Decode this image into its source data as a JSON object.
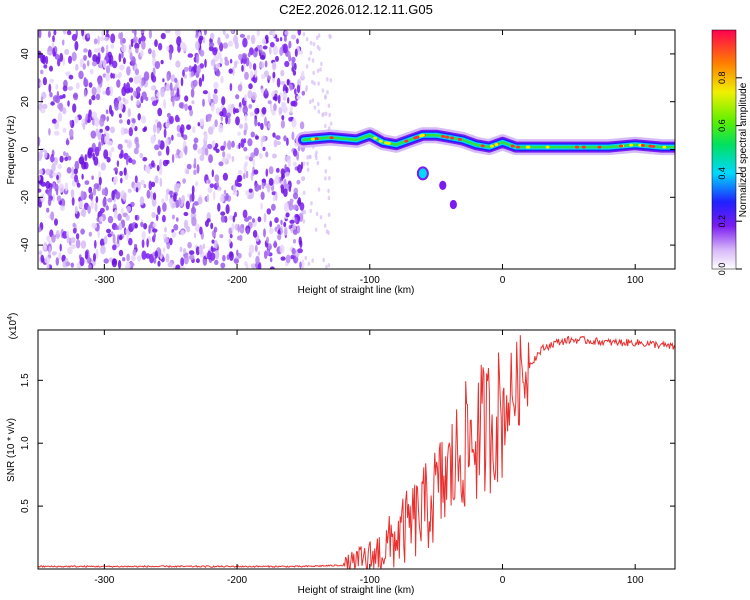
{
  "chart_data": [
    {
      "type": "heatmap",
      "title": "C2E2.2026.012.12.11.G05",
      "xlabel": "Height of straight line (km)",
      "ylabel": "Frequency (Hz)",
      "xlim": [
        -350,
        130
      ],
      "ylim": [
        -50,
        50
      ],
      "xticks": [
        -300,
        -200,
        -100,
        0,
        100
      ],
      "yticks": [
        -40,
        -20,
        0,
        20,
        40
      ],
      "colorbar": {
        "label": "Normalized spectral amplitude",
        "range": [
          0,
          1
        ],
        "ticks": [
          "0.0",
          "0.2",
          "0.4",
          "0.6",
          "0.8"
        ]
      },
      "noise_region_x": [
        -350,
        -150
      ],
      "signal_track": {
        "x": [
          -150,
          -130,
          -110,
          -100,
          -90,
          -80,
          -70,
          -60,
          -50,
          -40,
          -30,
          -20,
          -10,
          0,
          10,
          20,
          40,
          60,
          80,
          100,
          120,
          130
        ],
        "freq": [
          4,
          5,
          4,
          6,
          3,
          2,
          4,
          6,
          6,
          5,
          4,
          2,
          1,
          3,
          1,
          1,
          1,
          1,
          1,
          2,
          1,
          1
        ]
      },
      "outlier_points": [
        {
          "x": -60,
          "freq": -10
        },
        {
          "x": -45,
          "freq": -15
        },
        {
          "x": -37,
          "freq": -23
        }
      ]
    },
    {
      "type": "line",
      "xlabel": "Height of straight line (km)",
      "ylabel": "SNR (10 * v/v)",
      "scale_label": "(x10",
      "scale_exponent": "4",
      "scale_suffix": ")",
      "xlim": [
        -350,
        130
      ],
      "ylim": [
        0,
        1.9
      ],
      "xticks": [
        -300,
        -200,
        -100,
        0,
        100
      ],
      "yticks": [
        "0.5",
        "1.0",
        "1.5"
      ],
      "series": [
        {
          "name": "SNR",
          "color": "#e8302e",
          "x": [
            -350,
            -300,
            -200,
            -150,
            -120,
            -100,
            -90,
            -80,
            -70,
            -60,
            -50,
            -40,
            -30,
            -20,
            -10,
            0,
            10,
            20,
            30,
            40,
            50,
            60,
            80,
            100,
            120,
            130
          ],
          "y": [
            0.02,
            0.02,
            0.02,
            0.02,
            0.03,
            0.08,
            0.15,
            0.25,
            0.35,
            0.45,
            0.6,
            0.75,
            0.95,
            1.05,
            1.15,
            1.25,
            1.45,
            1.62,
            1.75,
            1.8,
            1.82,
            1.82,
            1.8,
            1.8,
            1.78,
            1.76
          ]
        }
      ]
    }
  ]
}
